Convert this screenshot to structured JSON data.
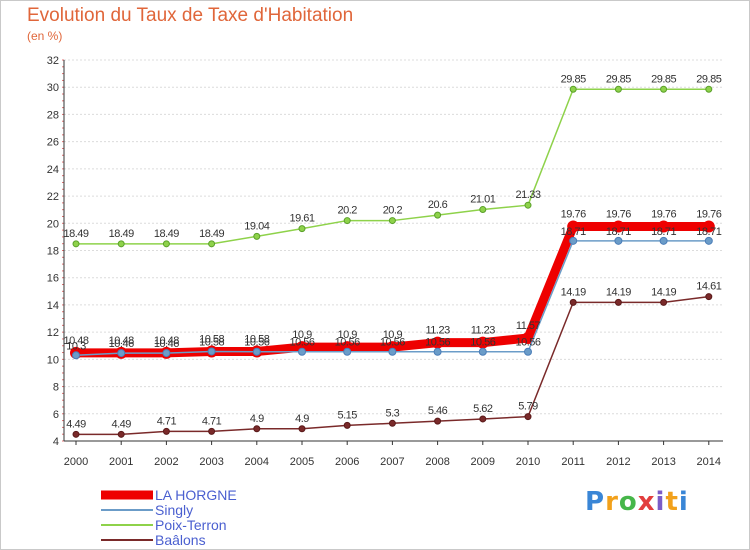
{
  "header": {
    "title": "Evolution du Taux de Taxe d'Habitation",
    "unit": "(en %)"
  },
  "brand": {
    "logo_text": "Proxiti",
    "logo_colors": [
      "#3a86d6",
      "#f2a11b",
      "#46b649",
      "#e23d3d",
      "#7b5cc7",
      "#f2a11b",
      "#3a86d6"
    ]
  },
  "chart_data": {
    "type": "line",
    "title": "Evolution du Taux de Taxe d'Habitation",
    "ylabel": "(en %)",
    "xlabel": "",
    "x": [
      "2000",
      "2001",
      "2002",
      "2003",
      "2004",
      "2005",
      "2006",
      "2007",
      "2008",
      "2009",
      "2010",
      "2011",
      "2012",
      "2013",
      "2014"
    ],
    "ylim": [
      4,
      32
    ],
    "yticks": [
      4,
      6,
      8,
      10,
      12,
      14,
      16,
      18,
      20,
      22,
      24,
      26,
      28,
      30,
      32
    ],
    "grid": "horizontal",
    "legend_position": "bottom-left",
    "series": [
      {
        "name": "LA HORGNE",
        "color": "#ee0000",
        "values": [
          10.48,
          10.48,
          10.48,
          10.58,
          10.58,
          10.9,
          10.9,
          10.9,
          11.23,
          11.23,
          11.57,
          19.76,
          19.76,
          19.76,
          19.76
        ],
        "labels": [
          "10.48",
          "10.48",
          "10.48",
          "10.58",
          "10.58",
          "10.9",
          "10.9",
          "10.9",
          "11.23",
          "11.23",
          "11.57",
          "19.76",
          "19.76",
          "19.76",
          "19.76"
        ]
      },
      {
        "name": "Singly",
        "color": "#6b9cc8",
        "values": [
          10.3,
          10.46,
          10.46,
          10.58,
          10.56,
          10.56,
          10.56,
          10.56,
          10.56,
          10.56,
          10.56,
          18.71,
          18.71,
          18.71,
          18.71
        ],
        "labels": [
          "10.3",
          "10.46",
          "10.46",
          "10.58",
          "10.56",
          "10.56",
          "10.56",
          "10.56",
          "10.56",
          "10.56",
          "10.56",
          "18.71",
          "18.71",
          "18.71",
          "18.71"
        ]
      },
      {
        "name": "Poix-Terron",
        "color": "#8ed24a",
        "values": [
          18.49,
          18.49,
          18.49,
          18.49,
          19.04,
          19.61,
          20.2,
          20.2,
          20.6,
          21.01,
          21.33,
          29.85,
          29.85,
          29.85,
          29.85
        ],
        "labels": [
          "18.49",
          "18.49",
          "18.49",
          "18.49",
          "19.04",
          "19.61",
          "20.2",
          "20.2",
          "20.6",
          "21.01",
          "21.33",
          "29.85",
          "29.85",
          "29.85",
          "29.85"
        ]
      },
      {
        "name": "Baâlons",
        "color": "#7a2a2a",
        "values": [
          4.49,
          4.49,
          4.71,
          4.71,
          4.9,
          4.9,
          5.15,
          5.3,
          5.46,
          5.62,
          5.79,
          14.19,
          14.19,
          14.19,
          14.61
        ],
        "labels": [
          "4.49",
          "4.49",
          "4.71",
          "4.71",
          "4.9",
          "4.9",
          "5.15",
          "5.3",
          "5.46",
          "5.62",
          "5.79",
          "14.19",
          "14.19",
          "14.19",
          "14.61"
        ]
      }
    ]
  }
}
